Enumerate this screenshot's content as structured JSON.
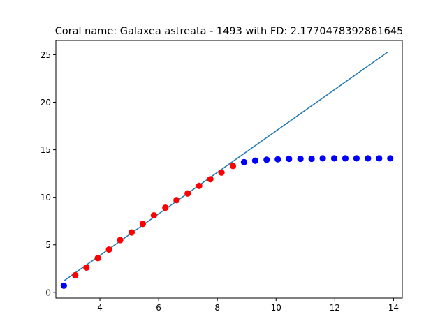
{
  "chart_data": {
    "type": "scatter",
    "title": "Coral name: Galaxea astreata - 1493 with FD: 2.1770478392861645",
    "xlabel": "",
    "ylabel": "",
    "xlim": [
      2.5,
      14.3
    ],
    "ylim": [
      -0.6,
      26.5
    ],
    "x_ticks": [
      4,
      6,
      8,
      10,
      12,
      14
    ],
    "y_ticks": [
      0,
      5,
      10,
      15,
      20,
      25
    ],
    "grid": false,
    "legend": "none",
    "colors": {
      "fit_line": "#1f77b4",
      "fit_points": "#ff0000",
      "other_points": "#0000ff"
    },
    "series": [
      {
        "kind": "line",
        "x": [
          2.77,
          13.81
        ],
        "y": [
          1.2,
          25.3
        ]
      },
      {
        "kind": "scatter",
        "color": "red",
        "x": [
          3.16,
          3.54,
          3.93,
          4.31,
          4.69,
          5.08,
          5.46,
          5.84,
          6.23,
          6.61,
          6.99,
          7.38,
          7.76,
          8.14,
          8.53
        ],
        "y": [
          1.8,
          2.6,
          3.6,
          4.5,
          5.5,
          6.3,
          7.2,
          8.1,
          8.9,
          9.7,
          10.4,
          11.2,
          11.9,
          12.6,
          13.3
        ]
      },
      {
        "kind": "scatter",
        "color": "blue",
        "x": [
          2.77,
          8.91,
          9.29,
          9.68,
          10.06,
          10.44,
          10.83,
          11.21,
          11.59,
          11.98,
          12.36,
          12.74,
          13.13,
          13.51,
          13.89
        ],
        "y": [
          0.7,
          13.7,
          13.85,
          13.95,
          14.0,
          14.05,
          14.05,
          14.05,
          14.1,
          14.1,
          14.1,
          14.1,
          14.1,
          14.1,
          14.1
        ]
      }
    ]
  }
}
